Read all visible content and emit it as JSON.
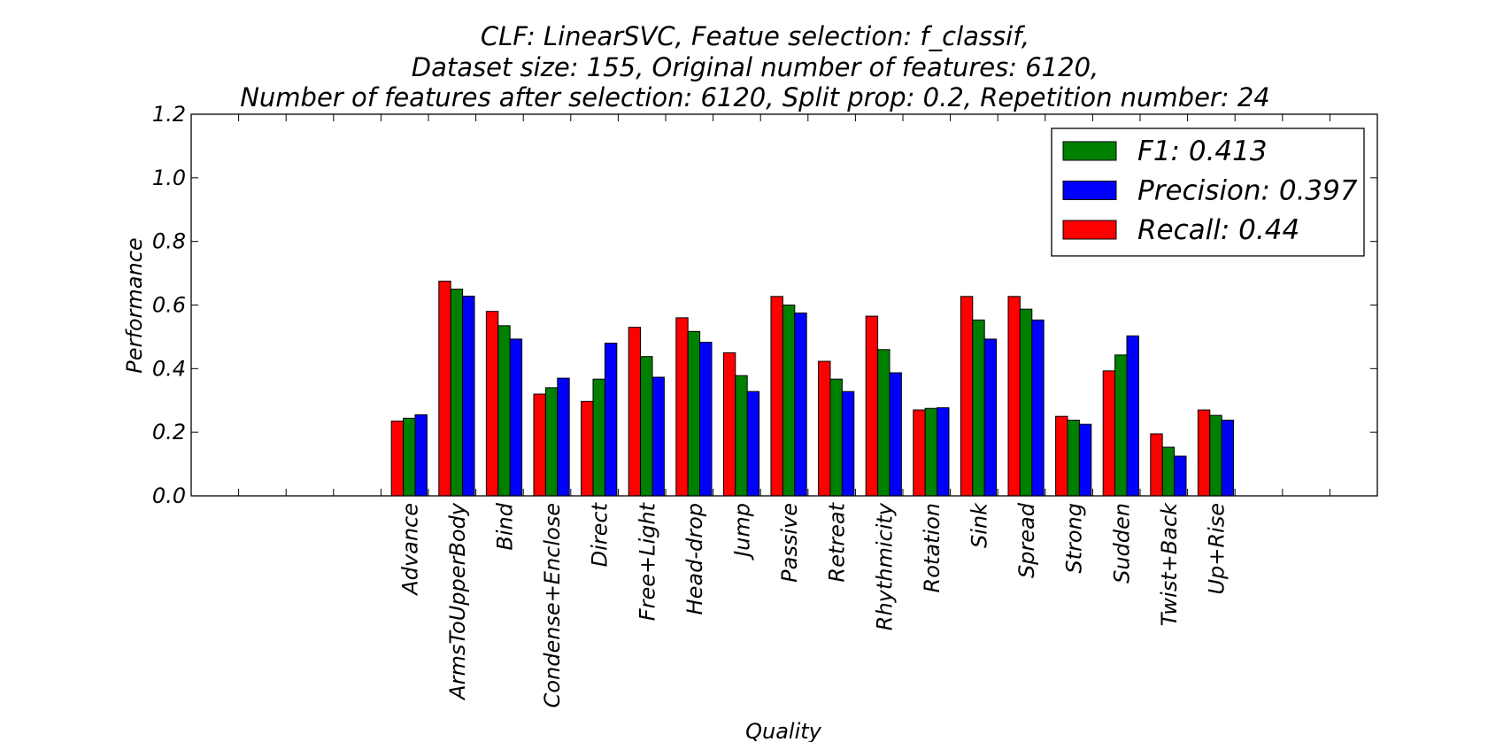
{
  "chart_data": {
    "type": "bar",
    "title_lines": [
      "CLF: LinearSVC, Featue selection: f_classif,",
      "Dataset size: 155, Original number of features: 6120,",
      "Number of features after selection: 6120, Split prop: 0.2, Repetition number: 24"
    ],
    "xlabel": "Quality",
    "ylabel": "Performance",
    "ylim": [
      0,
      1.2
    ],
    "yticks": [
      "0.0",
      "0.2",
      "0.4",
      "0.6",
      "0.8",
      "1.0",
      "1.2"
    ],
    "legend_position": "top-right",
    "categories": [
      "Advance",
      "ArmsToUpperBody",
      "Bind",
      "Condense+Enclose",
      "Direct",
      "Free+Light",
      "Head-drop",
      "Jump",
      "Passive",
      "Retreat",
      "Rhythmicity",
      "Rotation",
      "Sink",
      "Spread",
      "Strong",
      "Sudden",
      "Twist+Back",
      "Up+Rise"
    ],
    "series": [
      {
        "name": "Recall: 0.44",
        "color": "#ff0000",
        "values": [
          0.235,
          0.675,
          0.58,
          0.32,
          0.297,
          0.53,
          0.56,
          0.45,
          0.627,
          0.423,
          0.565,
          0.27,
          0.627,
          0.627,
          0.25,
          0.393,
          0.195,
          0.27
        ]
      },
      {
        "name": "F1: 0.413",
        "color": "#008000",
        "values": [
          0.244,
          0.65,
          0.535,
          0.34,
          0.367,
          0.438,
          0.517,
          0.378,
          0.6,
          0.367,
          0.46,
          0.275,
          0.553,
          0.587,
          0.238,
          0.443,
          0.153,
          0.253
        ]
      },
      {
        "name": "Precision: 0.397",
        "color": "#0000ff",
        "values": [
          0.255,
          0.628,
          0.493,
          0.37,
          0.48,
          0.373,
          0.483,
          0.328,
          0.575,
          0.328,
          0.387,
          0.277,
          0.493,
          0.553,
          0.225,
          0.503,
          0.125,
          0.238
        ]
      }
    ],
    "legend_order": [
      "F1: 0.413",
      "Precision: 0.397",
      "Recall: 0.44"
    ]
  }
}
